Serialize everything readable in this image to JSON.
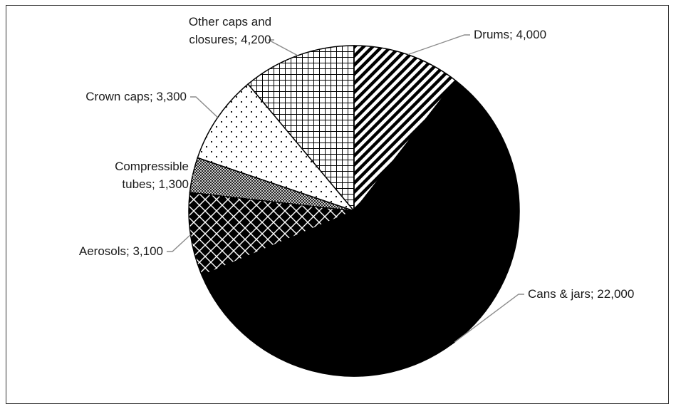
{
  "chart_data": {
    "type": "pie",
    "title": "",
    "slices": [
      {
        "label": "Drums; 4,000",
        "name": "Drums",
        "value": 4000,
        "pattern": "diagonal-stripes"
      },
      {
        "label": "Cans & jars; 22,000",
        "name": "Cans & jars",
        "value": 22000,
        "pattern": "solid-black"
      },
      {
        "label": "Aerosols; 3,100",
        "name": "Aerosols",
        "value": 3100,
        "pattern": "diamond-checker"
      },
      {
        "label_lines": [
          "Compressible",
          "tubes; 1,300"
        ],
        "name": "Compressible tubes",
        "value": 1300,
        "pattern": "fine-crosshatch"
      },
      {
        "label": "Crown caps; 3,300",
        "name": "Crown caps",
        "value": 3300,
        "pattern": "dots"
      },
      {
        "label_lines": [
          "Other caps and",
          "closures; 4,200"
        ],
        "name": "Other caps and closures",
        "value": 4200,
        "pattern": "grid"
      }
    ],
    "start": "12 o'clock",
    "direction": "clockwise",
    "legend": "none"
  },
  "colors": {
    "ink": "#000000",
    "leader": "#8c8c8c",
    "background": "#ffffff"
  }
}
